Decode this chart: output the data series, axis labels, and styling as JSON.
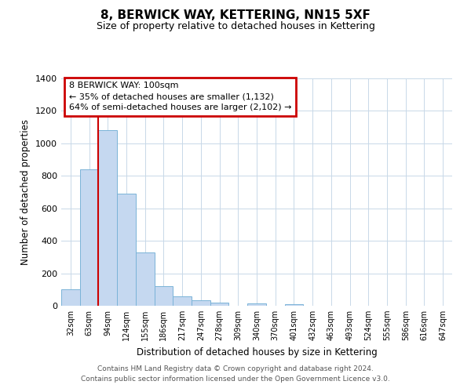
{
  "title": "8, BERWICK WAY, KETTERING, NN15 5XF",
  "subtitle": "Size of property relative to detached houses in Kettering",
  "xlabel": "Distribution of detached houses by size in Kettering",
  "ylabel": "Number of detached properties",
  "bar_categories": [
    "32sqm",
    "63sqm",
    "94sqm",
    "124sqm",
    "155sqm",
    "186sqm",
    "217sqm",
    "247sqm",
    "278sqm",
    "309sqm",
    "340sqm",
    "370sqm",
    "401sqm",
    "432sqm",
    "463sqm",
    "493sqm",
    "524sqm",
    "555sqm",
    "586sqm",
    "616sqm",
    "647sqm"
  ],
  "bar_values": [
    100,
    840,
    1080,
    690,
    330,
    120,
    60,
    35,
    20,
    0,
    15,
    0,
    10,
    0,
    0,
    0,
    0,
    0,
    0,
    0,
    0
  ],
  "bar_color": "#c5d8f0",
  "bar_edge_color": "#7ab3d8",
  "ylim": [
    0,
    1400
  ],
  "yticks": [
    0,
    200,
    400,
    600,
    800,
    1000,
    1200,
    1400
  ],
  "vline_index": 2,
  "vline_color": "#cc0000",
  "annotation_title": "8 BERWICK WAY: 100sqm",
  "annotation_line1": "← 35% of detached houses are smaller (1,132)",
  "annotation_line2": "64% of semi-detached houses are larger (2,102) →",
  "annotation_box_color": "#cc0000",
  "footer_line1": "Contains HM Land Registry data © Crown copyright and database right 2024.",
  "footer_line2": "Contains public sector information licensed under the Open Government Licence v3.0.",
  "background_color": "#ffffff",
  "grid_color": "#c8d8e8"
}
